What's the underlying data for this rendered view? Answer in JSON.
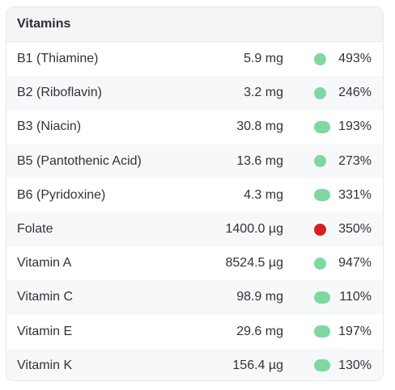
{
  "panel": {
    "title": "Vitamins",
    "colors": {
      "good": "#7fd8a1",
      "alert": "#d81f1f"
    },
    "rows": [
      {
        "name": "B1 (Thiamine)",
        "amount": "5.9 mg",
        "percent": "493%",
        "status": "good"
      },
      {
        "name": "B2 (Riboflavin)",
        "amount": "3.2 mg",
        "percent": "246%",
        "status": "good"
      },
      {
        "name": "B3 (Niacin)",
        "amount": "30.8 mg",
        "percent": "193%",
        "status": "good"
      },
      {
        "name": "B5 (Pantothenic Acid)",
        "amount": "13.6 mg",
        "percent": "273%",
        "status": "good"
      },
      {
        "name": "B6 (Pyridoxine)",
        "amount": "4.3 mg",
        "percent": "331%",
        "status": "good"
      },
      {
        "name": "Folate",
        "amount": "1400.0 µg",
        "percent": "350%",
        "status": "alert"
      },
      {
        "name": "Vitamin A",
        "amount": "8524.5 µg",
        "percent": "947%",
        "status": "good"
      },
      {
        "name": "Vitamin C",
        "amount": "98.9 mg",
        "percent": "110%",
        "status": "good"
      },
      {
        "name": "Vitamin E",
        "amount": "29.6 mg",
        "percent": "197%",
        "status": "good"
      },
      {
        "name": "Vitamin K",
        "amount": "156.4 µg",
        "percent": "130%",
        "status": "good"
      }
    ]
  }
}
